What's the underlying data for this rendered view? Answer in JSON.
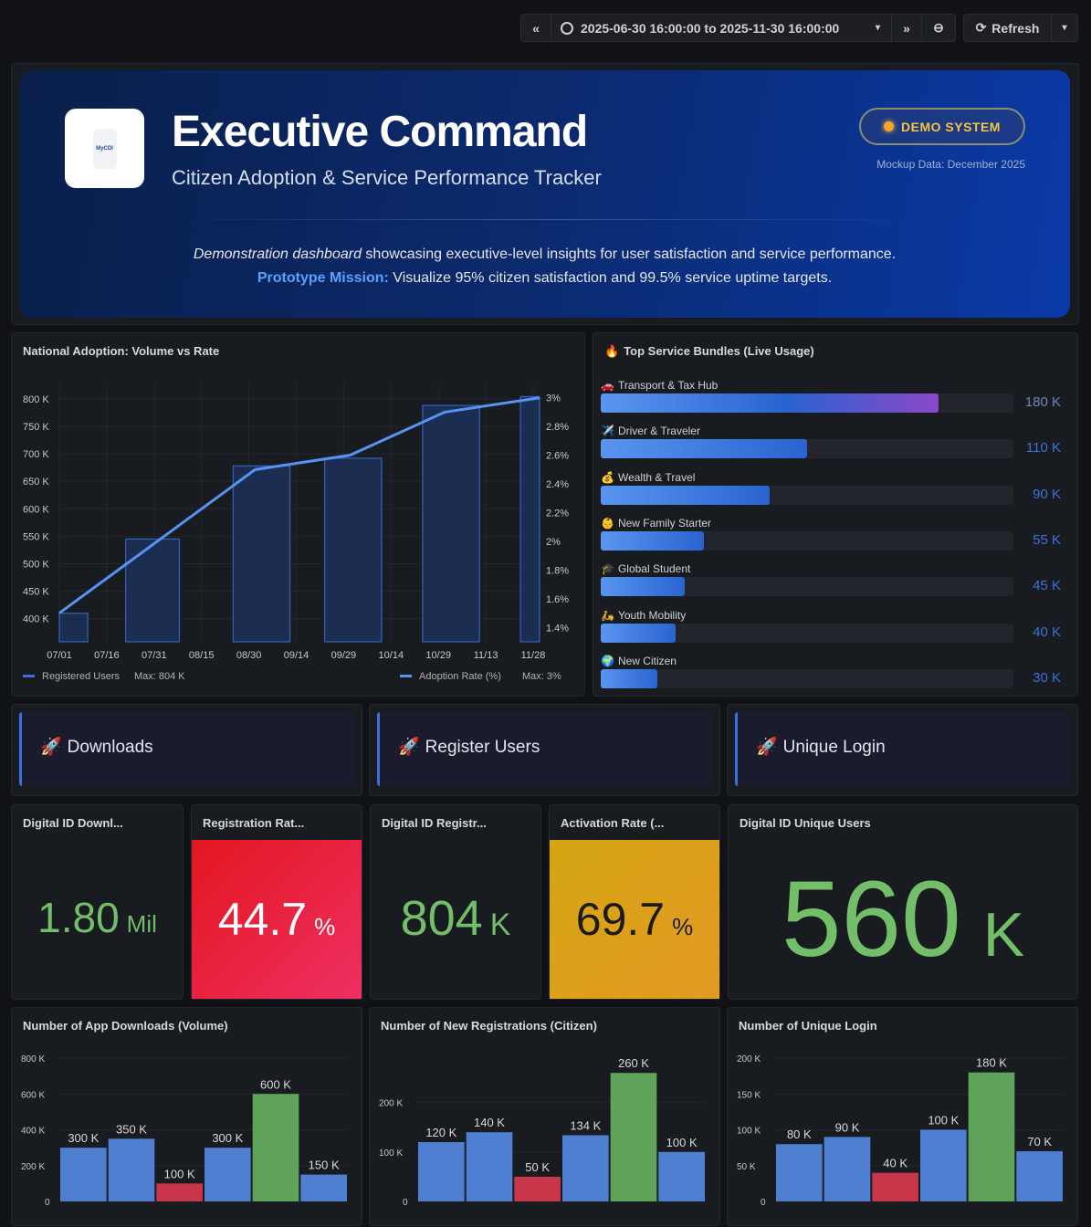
{
  "toolbar": {
    "time_range": "2025-06-30 16:00:00 to 2025-11-30 16:00:00",
    "refresh_label": "Refresh"
  },
  "header": {
    "logo_text": "MyCDI",
    "title": "Executive Command",
    "subtitle": "Citizen Adoption & Service Performance Tracker",
    "badge": "DEMO SYSTEM",
    "mockup_note": "Mockup Data: December 2025",
    "desc_italic": "Demonstration dashboard",
    "desc_rest": " showcasing executive-level insights for user satisfaction and service performance.",
    "mission_label": "Prototype Mission:",
    "mission_text": " Visualize 95% citizen satisfaction and 99.5% service uptime targets.",
    "colors": {
      "accent": "#5aa0ff",
      "badge": "#f5c542"
    }
  },
  "chart_data": [
    {
      "type": "bar+line",
      "title": "National Adoption: Volume vs Rate",
      "x_ticks": [
        "07/01",
        "07/16",
        "07/31",
        "08/15",
        "08/30",
        "09/14",
        "09/29",
        "10/14",
        "10/29",
        "11/13",
        "11/28"
      ],
      "y_left_ticks": [
        "800 K",
        "750 K",
        "700 K",
        "650 K",
        "600 K",
        "550 K",
        "500 K",
        "450 K",
        "400 K"
      ],
      "y_right_ticks": [
        "3%",
        "2.8%",
        "2.6%",
        "2.4%",
        "2.2%",
        "2%",
        "1.8%",
        "1.6%",
        "1.4%"
      ],
      "ylim_left": [
        358,
        828
      ],
      "ylim_right": [
        1.3,
        3.1
      ],
      "grid": true,
      "bars": [
        {
          "from": "07/01",
          "to": "07/10",
          "value": 410
        },
        {
          "from": "07/22",
          "to": "08/08",
          "value": 545
        },
        {
          "from": "08/25",
          "to": "09/12",
          "value": 678
        },
        {
          "from": "09/23",
          "to": "10/11",
          "value": 692
        },
        {
          "from": "10/24",
          "to": "11/11",
          "value": 788
        },
        {
          "from": "11/24",
          "to": "11/30",
          "value": 804
        }
      ],
      "line": [
        {
          "x": "07/01",
          "y": 1.5
        },
        {
          "x": "09/01",
          "y": 2.5
        },
        {
          "x": "10/01",
          "y": 2.6
        },
        {
          "x": "10/31",
          "y": 2.9
        },
        {
          "x": "11/30",
          "y": 3.0
        }
      ],
      "legend": [
        {
          "name": "Registered Users",
          "stat": "Max: 804 K"
        },
        {
          "name": "Adoption Rate (%)",
          "stat": "Max: 3%"
        }
      ],
      "legend_placement": "bottom"
    },
    {
      "type": "bar",
      "title": "Number of App Downloads (Volume)",
      "values": [
        300,
        350,
        100,
        300,
        600,
        150
      ],
      "labels": [
        "300 K",
        "350 K",
        "100 K",
        "300 K",
        "600 K",
        "150 K"
      ],
      "y_ticks": [
        "800 K",
        "600 K",
        "400 K",
        "200 K",
        "0"
      ],
      "ylim": [
        0,
        800
      ]
    },
    {
      "type": "bar",
      "title": "Number of New Registrations (Citizen)",
      "values": [
        120,
        140,
        50,
        134,
        260,
        100
      ],
      "labels": [
        "120 K",
        "140 K",
        "50 K",
        "134 K",
        "260 K",
        "100 K"
      ],
      "y_ticks": [
        "200 K",
        "100 K",
        "0"
      ],
      "ylim": [
        0,
        290
      ]
    },
    {
      "type": "bar",
      "title": "Number of Unique Login",
      "values": [
        80,
        90,
        40,
        100,
        180,
        70
      ],
      "labels": [
        "80 K",
        "90 K",
        "40 K",
        "100 K",
        "180 K",
        "70 K"
      ],
      "y_ticks": [
        "200 K",
        "150 K",
        "100 K",
        "50 K",
        "0"
      ],
      "ylim": [
        0,
        200
      ]
    }
  ],
  "bar_colors": [
    "#4f7fd0",
    "#4f7fd0",
    "#c8364a",
    "#4f7fd0",
    "#5fa35a",
    "#4f7fd0"
  ],
  "bundles": {
    "title": "Top Service Bundles (Live Usage)",
    "title_icon": "🔥",
    "items": [
      {
        "icon": "🚗",
        "label": "Transport & Tax Hub",
        "value": 180,
        "display": "180 K"
      },
      {
        "icon": "✈️",
        "label": "Driver & Traveler",
        "value": 110,
        "display": "110 K"
      },
      {
        "icon": "💰",
        "label": "Wealth & Travel",
        "value": 90,
        "display": "90 K"
      },
      {
        "icon": "👶",
        "label": "New Family Starter",
        "value": 55,
        "display": "55 K"
      },
      {
        "icon": "🎓",
        "label": "Global Student",
        "value": 45,
        "display": "45 K"
      },
      {
        "icon": "🛵",
        "label": "Youth Mobility",
        "value": 40,
        "display": "40 K"
      },
      {
        "icon": "🌍",
        "label": "New Citizen",
        "value": 30,
        "display": "30 K"
      }
    ]
  },
  "sections": [
    {
      "icon": "🚀",
      "label": "Downloads"
    },
    {
      "icon": "🚀",
      "label": "Register Users"
    },
    {
      "icon": "🚀",
      "label": "Unique Login"
    }
  ],
  "stats": [
    {
      "title": "Digital ID Downl...",
      "value": "1.80",
      "unit": "Mil"
    },
    {
      "title": "Registration Rat...",
      "value": "44.7",
      "unit": "%"
    },
    {
      "title": "Digital ID Registr...",
      "value": "804",
      "unit": "K"
    },
    {
      "title": "Activation Rate (...",
      "value": "69.7",
      "unit": "%"
    },
    {
      "title": "Digital ID Unique Users",
      "value": "560",
      "unit": "K"
    }
  ]
}
